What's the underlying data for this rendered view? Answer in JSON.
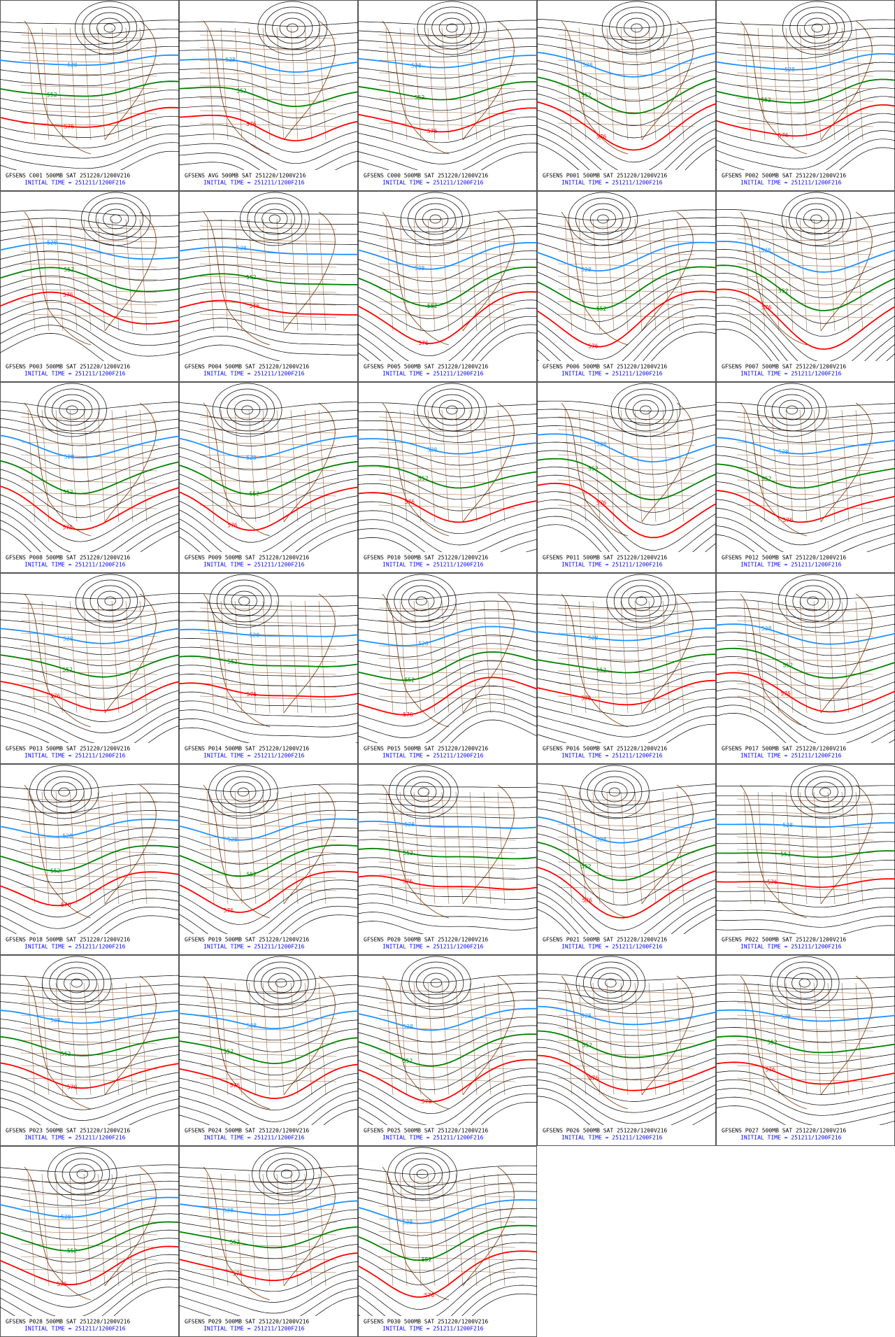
{
  "panels": [
    {
      "title": "GFSENS C001 500MB SAT 251220/1200V216"
    },
    {
      "title": "GFSENS AVG 500MB SAT 251220/1200V216"
    },
    {
      "title": "GFSENS C000 500MB SAT 251220/1200V216"
    },
    {
      "title": "GFSENS P001 500MB SAT 251220/1200V216"
    },
    {
      "title": "GFSENS P002 500MB SAT 251220/1200V216"
    },
    {
      "title": "GFSENS P003 500MB SAT 251220/1200V216"
    },
    {
      "title": "GFSENS P004 500MB SAT 251220/1200V216"
    },
    {
      "title": "GFSENS P005 500MB SAT 251220/1200V216"
    },
    {
      "title": "GFSENS P006 500MB SAT 251220/1200V216"
    },
    {
      "title": "GFSENS P007 500MB SAT 251220/1200V216"
    },
    {
      "title": "GFSENS P008 500MB SAT 251220/1200V216"
    },
    {
      "title": "GFSENS P009 500MB SAT 251220/1200V216"
    },
    {
      "title": "GFSENS P010 500MB SAT 251220/1200V216"
    },
    {
      "title": "GFSENS P011 500MB SAT 251220/1200V216"
    },
    {
      "title": "GFSENS P012 500MB SAT 251220/1200V216"
    },
    {
      "title": "GFSENS P013 500MB SAT 251220/1200V216"
    },
    {
      "title": "GFSENS P014 500MB SAT 251220/1200V216"
    },
    {
      "title": "GFSENS P015 500MB SAT 251220/1200V216"
    },
    {
      "title": "GFSENS P016 500MB SAT 251220/1200V216"
    },
    {
      "title": "GFSENS P017 500MB SAT 251220/1200V216"
    },
    {
      "title": "GFSENS P018 500MB SAT 251220/1200V216"
    },
    {
      "title": "GFSENS P019 500MB SAT 251220/1200V216"
    },
    {
      "title": "GFSENS P020 500MB SAT 251220/1200V216"
    },
    {
      "title": "GFSENS P021 500MB SAT 251220/1200V216"
    },
    {
      "title": "GFSENS P022 500MB SAT 251220/1200V216"
    },
    {
      "title": "GFSENS P023 500MB SAT 251220/1200V216"
    },
    {
      "title": "GFSENS P024 500MB SAT 251220/1200V216"
    },
    {
      "title": "GFSENS P025 500MB SAT 251220/1200V216"
    },
    {
      "title": "GFSENS P026 500MB SAT 251220/1200V216"
    },
    {
      "title": "GFSENS P027 500MB SAT 251220/1200V216"
    },
    {
      "title": "GFSENS P028 500MB SAT 251220/1200V216"
    },
    {
      "title": "GFSENS P029 500MB SAT 251220/1200V216"
    },
    {
      "title": "GFSENS P030 500MB SAT 251220/1200V216"
    }
  ],
  "initial_time": "INITIAL TIME = 251211/1200F216",
  "contours": [
    {
      "label": "528",
      "color": "#1e90ff"
    },
    {
      "label": "552",
      "color": "#008000"
    },
    {
      "label": "576",
      "color": "#ff0000"
    }
  ]
}
